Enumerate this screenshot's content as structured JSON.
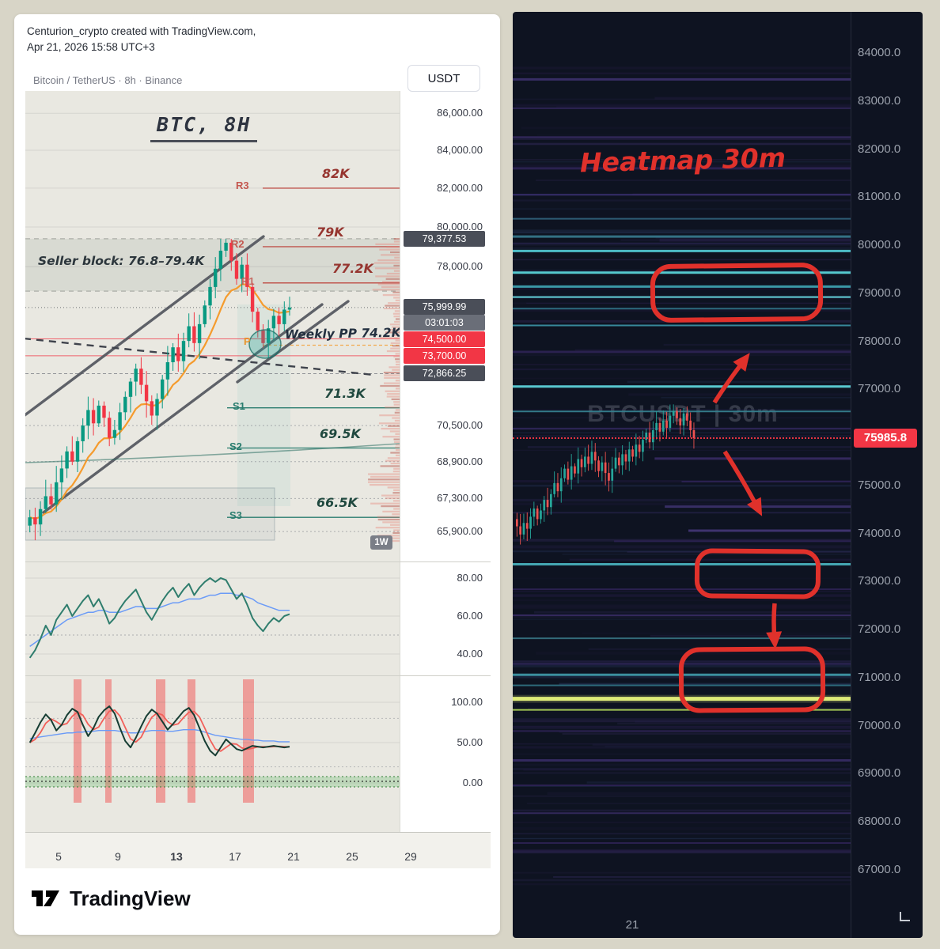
{
  "left": {
    "attribution": [
      "Centurion_crypto created with TradingView.com,",
      "Apr 21, 2026 15:58 UTC+3"
    ],
    "symbol_title": "Bitcoin / TetherUS · 8h · Binance",
    "currency_button": "USDT",
    "chart_label": "BTC, 8H",
    "annotations": {
      "seller_block": "Seller block: 76.8–79.4K",
      "weekly_pp": "Weekly PP 74.2K",
      "r3": "82K",
      "r2": "79K",
      "r1": "77.2K",
      "s1": "71.3K",
      "s2": "69.5K",
      "s3": "66.5K"
    },
    "pivot_labels": {
      "r3": "R3",
      "r2": "R2",
      "r1": "R1",
      "p": "P",
      "s1": "S1",
      "s2": "S2",
      "s3": "S3"
    },
    "price_axis": [
      "86,000.00",
      "84,000.00",
      "82,000.00",
      "80,000.00",
      "78,000.00",
      "70,500.00",
      "68,900.00",
      "67,300.00",
      "65,900.00"
    ],
    "price_axis_values": [
      86000,
      84000,
      82000,
      80000,
      78000,
      70500,
      68900,
      67300,
      65900
    ],
    "badges": {
      "high": "79,377.53",
      "last": "75,999.99",
      "countdown": "03:01:03",
      "alert1": "74,500.00",
      "alert2": "73,700.00",
      "level": "72,866.25",
      "tf": "1W"
    },
    "rsi_axis": [
      "80.00",
      "60.00",
      "40.00"
    ],
    "stoch_axis": [
      "100.00",
      "50.00",
      "0.00"
    ],
    "time_axis": [
      "5",
      "9",
      "13",
      "17",
      "21",
      "25",
      "29"
    ],
    "logo": "TradingView"
  },
  "right": {
    "title": "Heatmap 30m",
    "watermark": "BTCUSDT  |  30m",
    "price_badge": "75985.8",
    "axis_labels": [
      "84000.0",
      "83000.0",
      "82000.0",
      "81000.0",
      "80000.0",
      "79000.0",
      "78000.0",
      "77000.0",
      "75000.0",
      "74000.0",
      "73000.0",
      "72000.0",
      "71000.0",
      "70000.0",
      "69000.0",
      "68000.0",
      "67000.0"
    ],
    "time_label": "21"
  },
  "chart_data": [
    {
      "type": "candlestick",
      "symbol": "BTCUSDT",
      "timeframe": "8h",
      "title": "BTC, 8H",
      "ylim": [
        65900,
        86000
      ],
      "closes": [
        66500,
        66200,
        66850,
        67400,
        67050,
        68000,
        68600,
        69350,
        68900,
        69800,
        70500,
        71200,
        70600,
        71400,
        70850,
        69950,
        70300,
        71100,
        71800,
        72500,
        73100,
        72350,
        71600,
        70950,
        71700,
        72600,
        73400,
        74100,
        73450,
        74400,
        75100,
        74300,
        75200,
        76100,
        77000,
        77900,
        78800,
        79200,
        78300,
        77400,
        78100,
        77000,
        75800,
        74900,
        74300,
        75000,
        75600,
        75200,
        75900,
        76000
      ],
      "pivots": {
        "R3": 82000,
        "R2": 79000,
        "R1": 77200,
        "P": 74200,
        "S1": 71300,
        "S2": 69500,
        "S3": 66500
      },
      "levels": {
        "last": 75999.99,
        "high": 79377.53,
        "alerts": [
          74500,
          73700
        ],
        "level": 72866.25,
        "seller_block": [
          76800,
          79400
        ],
        "weekly_pp": 74200
      },
      "rsi": {
        "line": [
          38,
          42,
          48,
          55,
          50,
          58,
          62,
          66,
          60,
          64,
          68,
          71,
          65,
          69,
          63,
          56,
          59,
          64,
          68,
          71,
          74,
          68,
          62,
          58,
          63,
          68,
          72,
          75,
          70,
          74,
          77,
          71,
          75,
          78,
          80,
          78,
          80,
          79,
          74,
          69,
          72,
          66,
          59,
          55,
          52,
          56,
          59,
          57,
          60,
          61
        ],
        "ma": [
          44,
          46,
          48,
          50,
          52,
          54,
          56,
          58,
          59,
          60,
          61,
          62,
          62,
          63,
          63,
          62,
          62,
          62,
          63,
          64,
          65,
          65,
          64,
          64,
          64,
          65,
          66,
          67,
          67,
          68,
          69,
          69,
          69,
          70,
          71,
          71,
          72,
          72,
          72,
          71,
          71,
          70,
          69,
          67,
          66,
          65,
          64,
          63,
          63,
          63
        ]
      },
      "stoch": {
        "k": [
          50,
          62,
          75,
          85,
          78,
          65,
          72,
          84,
          92,
          88,
          72,
          58,
          68,
          82,
          90,
          95,
          86,
          68,
          52,
          44,
          56,
          70,
          83,
          91,
          86,
          76,
          66,
          73,
          81,
          89,
          93,
          84,
          68,
          52,
          40,
          34,
          44,
          54,
          48,
          42,
          40,
          43,
          46,
          45,
          44,
          45,
          46,
          45,
          44,
          45
        ],
        "blue": [
          55,
          56,
          57,
          58,
          59,
          60,
          61,
          62,
          62,
          63,
          63,
          64,
          64,
          65,
          65,
          65,
          65,
          64,
          63,
          62,
          62,
          63,
          64,
          65,
          65,
          65,
          64,
          64,
          65,
          66,
          66,
          66,
          65,
          63,
          61,
          59,
          58,
          57,
          56,
          55,
          54,
          54,
          53,
          53,
          52,
          52,
          52,
          51,
          51,
          51
        ],
        "signal_bars": [
          {
            "x": 61,
            "w": 10
          },
          {
            "x": 101,
            "w": 8
          },
          {
            "x": 165,
            "w": 12
          },
          {
            "x": 205,
            "w": 10
          },
          {
            "x": 275,
            "w": 14
          }
        ]
      }
    },
    {
      "type": "candlestick-heatmap",
      "symbol": "BTCUSDT",
      "timeframe": "30m",
      "last": 75985.8,
      "ylim": [
        67000,
        84000
      ],
      "closes": [
        74150,
        73980,
        74220,
        74100,
        74350,
        74520,
        74300,
        74480,
        74700,
        74550,
        74820,
        75050,
        74880,
        75150,
        75350,
        75120,
        75400,
        75250,
        75550,
        75380,
        75600,
        75450,
        75700,
        75520,
        75300,
        75480,
        75260,
        75100,
        75350,
        75580,
        75420,
        75650,
        75500,
        75750,
        75600,
        75850,
        75700,
        75950,
        76100,
        75900,
        76150,
        76300,
        76120,
        76350,
        76200,
        76450,
        76550,
        76400,
        76250,
        76500,
        76350,
        76150,
        75985
      ],
      "heat_lines": [
        {
          "p": 83450,
          "c": "#3a2f68",
          "w": 3
        },
        {
          "p": 82850,
          "c": "#2e2455",
          "w": 2
        },
        {
          "p": 82250,
          "c": "#352a60",
          "w": 2
        },
        {
          "p": 81600,
          "c": "#2c2252",
          "w": 3
        },
        {
          "p": 81050,
          "c": "#3a3070",
          "w": 2
        },
        {
          "p": 80550,
          "c": "#2f5f78",
          "w": 2
        },
        {
          "p": 80180,
          "c": "#35758a",
          "w": 3
        },
        {
          "p": 79880,
          "c": "#4fc4ce",
          "w": 3
        },
        {
          "p": 79430,
          "c": "#58d2d8",
          "w": 3
        },
        {
          "p": 79140,
          "c": "#3d9fae",
          "w": 3
        },
        {
          "p": 78920,
          "c": "#67dade",
          "w": 2
        },
        {
          "p": 78680,
          "c": "#2f6f84",
          "w": 2
        },
        {
          "p": 78330,
          "c": "#3a8fa2",
          "w": 2
        },
        {
          "p": 77780,
          "c": "#2c2252",
          "w": 3
        },
        {
          "p": 77060,
          "c": "#5cd2d8",
          "w": 3
        },
        {
          "p": 76540,
          "c": "#35808f",
          "w": 2
        },
        {
          "p": 76180,
          "c": "#2f2758",
          "w": 2
        },
        {
          "p": 75560,
          "c": "#352a60",
          "w": 3,
          "x0": 0.42
        },
        {
          "p": 75080,
          "c": "#2c2252",
          "w": 2,
          "x0": 0.5
        },
        {
          "p": 74560,
          "c": "#3a3068",
          "w": 3,
          "x0": 0.45
        },
        {
          "p": 74060,
          "c": "#413473",
          "w": 3,
          "x0": 0.52
        },
        {
          "p": 73840,
          "c": "#2c2252",
          "w": 2,
          "x0": 0.3
        },
        {
          "p": 73360,
          "c": "#47aeba",
          "w": 3
        },
        {
          "p": 72840,
          "c": "#2c2252",
          "w": 2
        },
        {
          "p": 72300,
          "c": "#352a60",
          "w": 2
        },
        {
          "p": 71820,
          "c": "#36707f",
          "w": 2
        },
        {
          "p": 71290,
          "c": "#2f2758",
          "w": 2
        },
        {
          "p": 71060,
          "c": "#3f96a6",
          "w": 3
        },
        {
          "p": 70840,
          "c": "#2f6f80",
          "w": 2
        },
        {
          "p": 70560,
          "c": "#e9f57d",
          "w": 5
        },
        {
          "p": 70330,
          "c": "#a9cf55",
          "w": 2
        },
        {
          "p": 69890,
          "c": "#2c2252",
          "w": 2
        },
        {
          "p": 69280,
          "c": "#362b62",
          "w": 3
        },
        {
          "p": 68760,
          "c": "#2c2252",
          "w": 2
        },
        {
          "p": 68180,
          "c": "#342a5e",
          "w": 2
        },
        {
          "p": 67560,
          "c": "#2c2252",
          "w": 2
        }
      ]
    }
  ],
  "colors": {
    "up_left": "#089981",
    "down_left": "#f23645",
    "up_right": "#26a69a",
    "down_right": "#ef5350",
    "accent_red": "#f23645",
    "annotation_red": "#e0312b",
    "ma_orange": "#f59b2d"
  }
}
